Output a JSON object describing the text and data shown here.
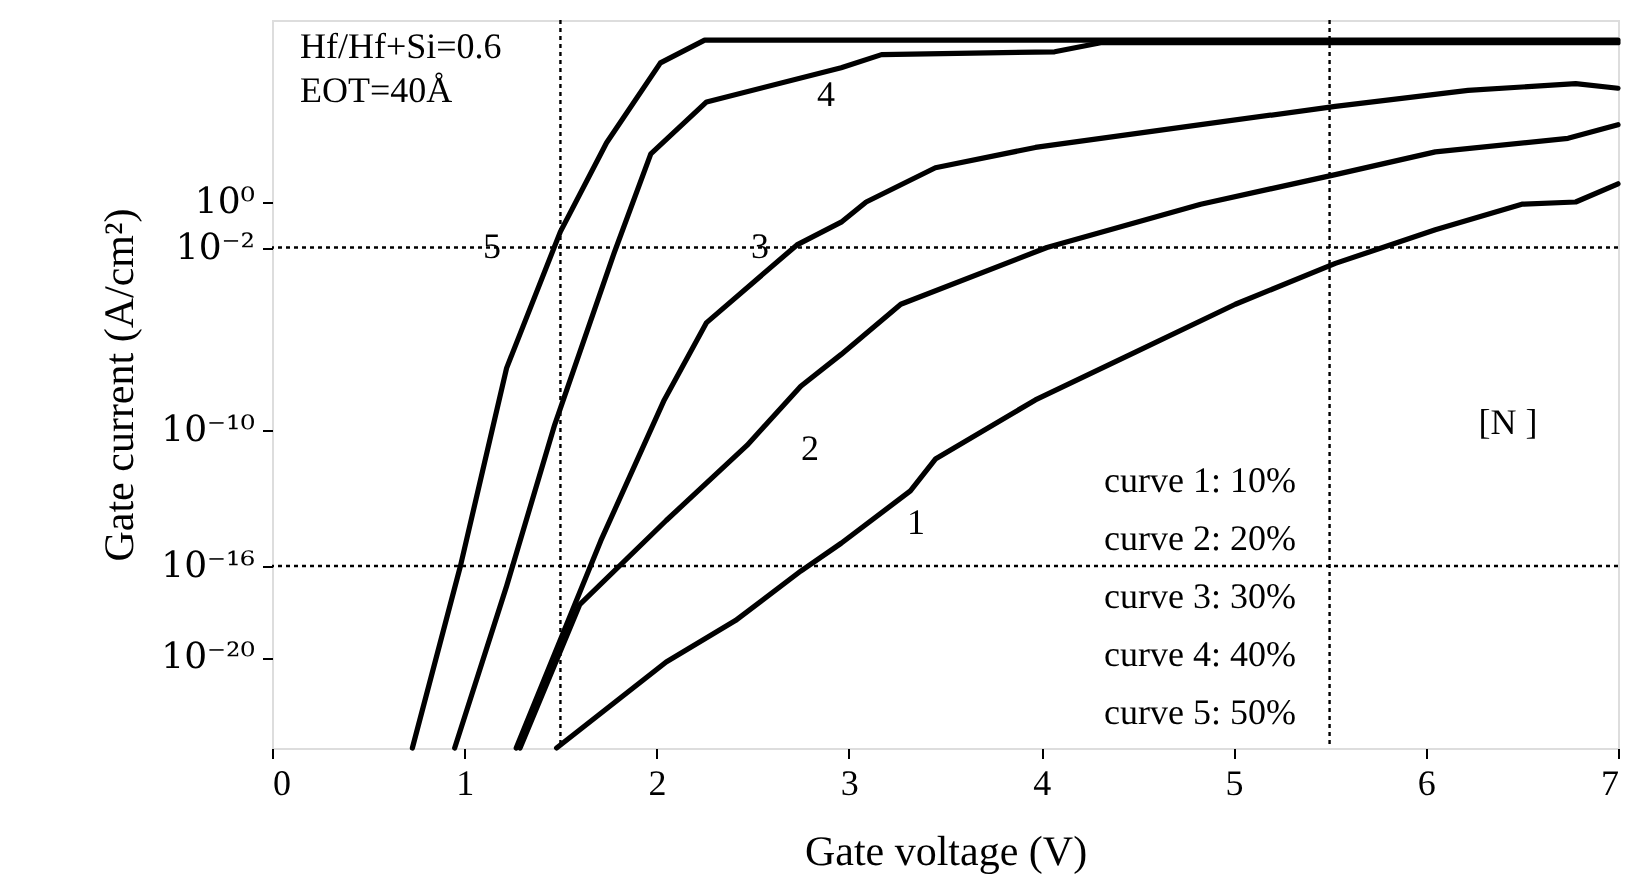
{
  "chart_data": {
    "type": "line",
    "xlabel": "Gate voltage (V)",
    "ylabel": "Gate current (A/cm²)",
    "xlim": [
      0,
      7
    ],
    "xticks": [
      0,
      1,
      2,
      3,
      4,
      5,
      6,
      7
    ],
    "ylim": [
      1e-24,
      100000000.0
    ],
    "log": "y",
    "yticks": [
      {
        "value": 1,
        "label": "10⁰"
      },
      {
        "value": 0.01,
        "label": "10⁻²"
      },
      {
        "value": 1e-10,
        "label": "10⁻¹⁰"
      },
      {
        "value": 1e-16,
        "label": "10⁻¹⁶"
      },
      {
        "value": 1e-20,
        "label": "10⁻²⁰"
      }
    ],
    "grid": false,
    "marker": "none",
    "line_style": "solid",
    "series": [
      {
        "color": "#000000",
        "x": [
          1.48,
          2.05,
          2.41,
          2.75,
          2.96,
          3.32,
          3.45,
          3.97,
          4.49,
          5.01,
          5.53,
          6.05,
          6.5,
          6.78,
          7.0
        ],
        "values": [
          1e-24,
          6e-21,
          4e-19,
          6e-17,
          1e-15,
          2e-13,
          5e-12,
          2e-09,
          2.5e-07,
          3.2e-05,
          0.002,
          0.06,
          0.8,
          1,
          6.3
        ]
      },
      {
        "color": "#000000",
        "x": [
          1.29,
          1.6,
          2.05,
          2.47,
          2.75,
          2.96,
          3.27,
          4.03,
          4.83,
          5.53,
          6.05,
          6.74,
          7.0
        ],
        "values": [
          1e-24,
          2e-18,
          1e-14,
          2e-11,
          8e-09,
          2e-07,
          3.2e-05,
          0.01,
          0.8,
          16,
          160,
          630,
          2500
        ]
      },
      {
        "color": "#000000",
        "x": [
          1.27,
          1.71,
          2.04,
          2.26,
          2.73,
          2.96,
          3.09,
          3.45,
          3.97,
          4.83,
          5.53,
          6.22,
          6.78,
          7.0
        ],
        "values": [
          1e-24,
          1.3e-15,
          2e-09,
          5e-06,
          0.013,
          0.13,
          1,
          32,
          250,
          2500,
          16000.0,
          80000.0,
          160000.0,
          100000.0
        ]
      },
      {
        "color": "#000000",
        "x": [
          0.95,
          1.22,
          1.47,
          1.78,
          1.97,
          2.26,
          2.96,
          3.17,
          4.07,
          4.31,
          7.0
        ],
        "values": [
          1e-24,
          1.3e-17,
          1.6e-10,
          0.006,
          130.0,
          25000.0,
          800000.0,
          3000000.0,
          4000000.0,
          10000000.0,
          10000000.0
        ]
      },
      {
        "color": "#000000",
        "x": [
          0.73,
          0.98,
          1.22,
          1.5,
          1.74,
          2.02,
          2.25,
          7.0
        ],
        "values": [
          1e-24,
          1e-16,
          5e-08,
          0.05,
          400.0,
          1300000.0,
          13000000.0,
          13000000.0
        ]
      }
    ],
    "ref_lines": [
      {
        "axis": "y",
        "value": 0.01,
        "line_style": "dotted"
      },
      {
        "axis": "y",
        "value": 1e-16,
        "line_style": "dotted"
      },
      {
        "axis": "x",
        "value": 1.5,
        "line_style": "dotted"
      },
      {
        "axis": "x",
        "value": 5.5,
        "line_style": "dotted"
      }
    ],
    "annotations": [
      "Hf/Hf+Si=0.6",
      "EOT=40Å",
      "1",
      "2",
      "3",
      "4",
      "5",
      "[N ]",
      "curve 1:  10%",
      "curve 2:  20%",
      "curve 3:  30%",
      "curve 4:  40%",
      "curve 5:  50%"
    ]
  }
}
